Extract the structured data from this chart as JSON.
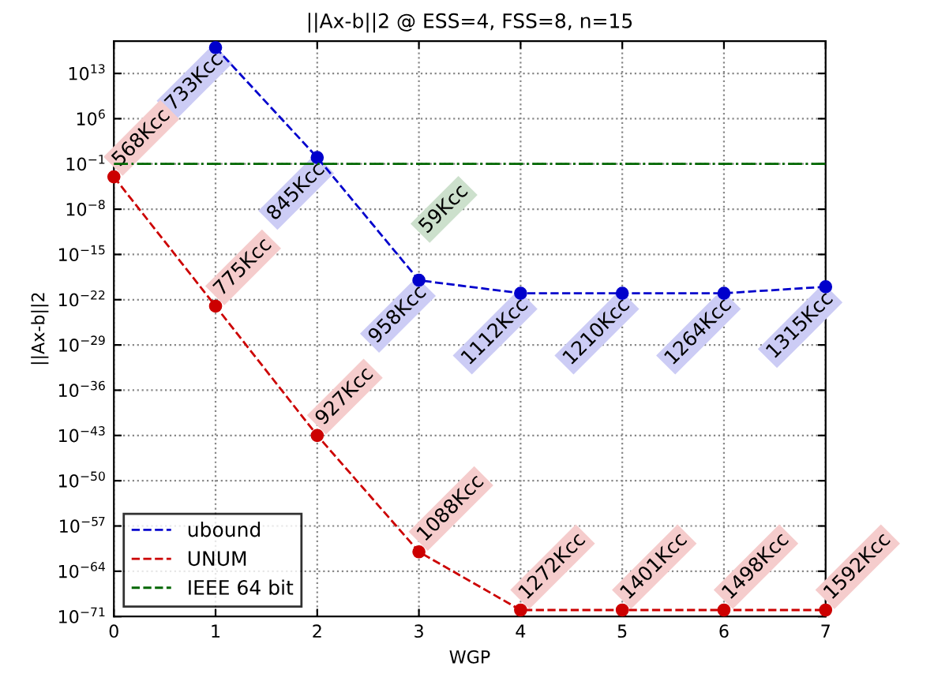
{
  "chart_data": {
    "type": "line",
    "title": "||Ax-b||2 @ ESS=4, FSS=8, n=15",
    "xlabel": "WGP",
    "ylabel": "||Ax-b||2",
    "log": "y",
    "xlim": [
      0,
      7
    ],
    "xticks": [
      0,
      1,
      2,
      3,
      4,
      5,
      6,
      7
    ],
    "ylim": [
      1e-71,
      1e+18
    ],
    "yticks": [
      {
        "value": 1e-71,
        "label": "10$^{−71}$"
      },
      {
        "value": 1e-64,
        "label": "10$^{−64}$"
      },
      {
        "value": 1e-57,
        "label": "10$^{−57}$"
      },
      {
        "value": 1e-50,
        "label": "10$^{−50}$"
      },
      {
        "value": 1e-43,
        "label": "10$^{−43}$"
      },
      {
        "value": 1e-36,
        "label": "10$^{−36}$"
      },
      {
        "value": 1e-29,
        "label": "10$^{−29}$"
      },
      {
        "value": 1e-22,
        "label": "10$^{−22}$"
      },
      {
        "value": 1e-15,
        "label": "10$^{−15}$"
      },
      {
        "value": 1e-08,
        "label": "10$^{−8}$"
      },
      {
        "value": 0.1,
        "label": "10$^{−1}$"
      },
      {
        "value": 1000000.0,
        "label": "10$^{6}$"
      },
      {
        "value": 10000000000000.0,
        "label": "10$^{13}$"
      }
    ],
    "grid": true,
    "legend": "bottom left",
    "series": [
      {
        "name": "ubound",
        "color": "#0000cc",
        "marker": "circle",
        "line_style": "dashed",
        "x": [
          1,
          2,
          3,
          4,
          5,
          6,
          7
        ],
        "values": [
          1e+17,
          1,
          1e-19,
          1e-21,
          1e-21,
          1e-21,
          1e-20
        ]
      },
      {
        "name": "UNUM",
        "color": "#cc0000",
        "marker": "circle",
        "line_style": "dashed",
        "x": [
          0,
          1,
          2,
          3,
          4,
          5,
          6,
          7
        ],
        "values": [
          0.001,
          1e-23,
          1e-43,
          1e-61,
          1e-70,
          1e-70,
          1e-70,
          1e-70
        ]
      },
      {
        "name": "IEEE 64 bit",
        "color": "#006600",
        "marker": "none",
        "line_style": "dashdot",
        "x": [
          0,
          1,
          2,
          3,
          4,
          5,
          6,
          7
        ],
        "values": [
          0.1,
          0.1,
          0.1,
          0.1,
          0.1,
          0.1,
          0.1,
          0.1
        ]
      }
    ],
    "annotations": [
      {
        "text": "733Kcc",
        "x": 1,
        "y": 1e+17
      },
      {
        "text": "845Kcc",
        "x": 2,
        "y": 1
      },
      {
        "text": "958Kcc",
        "x": 3,
        "y": 1e-19
      },
      {
        "text": "1112Kcc",
        "x": 4,
        "y": 1e-21
      },
      {
        "text": "1210Kcc",
        "x": 5,
        "y": 1e-21
      },
      {
        "text": "1264Kcc",
        "x": 6,
        "y": 1e-21
      },
      {
        "text": "1315Kcc",
        "x": 7,
        "y": 1e-20
      },
      {
        "text": "568Kcc",
        "x": 0,
        "y": 0.001
      },
      {
        "text": "775Kcc",
        "x": 1,
        "y": 1e-23
      },
      {
        "text": "927Kcc",
        "x": 2,
        "y": 1e-43
      },
      {
        "text": "1088Kcc",
        "x": 3,
        "y": 1e-61
      },
      {
        "text": "1272Kcc",
        "x": 4,
        "y": 1e-70
      },
      {
        "text": "1401Kcc",
        "x": 5,
        "y": 1e-70
      },
      {
        "text": "1498Kcc",
        "x": 6,
        "y": 1e-70
      },
      {
        "text": "1592Kcc",
        "x": 7,
        "y": 1e-70
      },
      {
        "text": "59Kcc",
        "x": 3,
        "y": 0.1
      }
    ]
  }
}
